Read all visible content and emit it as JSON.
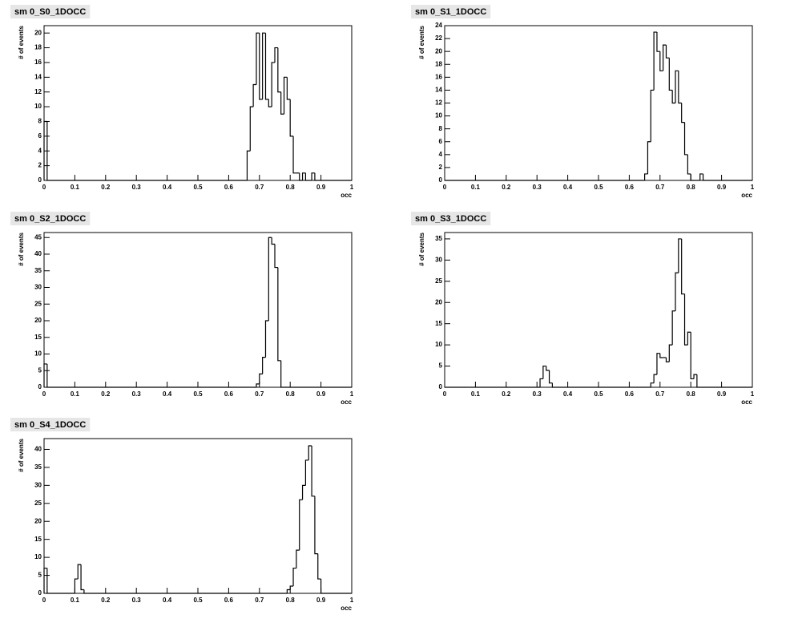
{
  "chart_data": [
    {
      "type": "histogram",
      "title": "sm 0_S0_1DOCC",
      "x_label": "occ",
      "y_label": "# of events",
      "color": "#000000",
      "bins": [
        0,
        0.01,
        0.66,
        0.67,
        0.68,
        0.69,
        0.7,
        0.71,
        0.72,
        0.73,
        0.74,
        0.75,
        0.76,
        0.77,
        0.78,
        0.79,
        0.8,
        0.81,
        0.82,
        0.83,
        0.84,
        0.85,
        0.86,
        0.87,
        0.88,
        1
      ],
      "values": [
        8,
        0,
        4,
        10,
        13,
        20,
        11,
        20,
        11,
        10,
        16,
        18,
        12,
        9,
        14,
        11,
        6,
        1,
        1,
        0,
        1,
        0,
        0,
        1,
        0
      ],
      "xlim": [
        0,
        1
      ],
      "ylim": [
        0,
        21
      ],
      "xticks": [
        0,
        0.1,
        0.2,
        0.3,
        0.4,
        0.5,
        0.6,
        0.7,
        0.8,
        0.9,
        1
      ],
      "yticks": [
        0,
        2,
        4,
        6,
        8,
        10,
        12,
        14,
        16,
        18,
        20
      ]
    },
    {
      "type": "histogram",
      "title": "sm 0_S1_1DOCC",
      "x_label": "occ",
      "y_label": "# of events",
      "color": "#000000",
      "bins": [
        0,
        0.65,
        0.66,
        0.67,
        0.68,
        0.69,
        0.7,
        0.71,
        0.72,
        0.73,
        0.74,
        0.75,
        0.76,
        0.77,
        0.78,
        0.79,
        0.8,
        0.81,
        0.82,
        0.83,
        0.84,
        1
      ],
      "values": [
        0,
        1,
        6,
        14,
        23,
        20,
        17,
        21,
        19,
        14,
        12,
        17,
        12,
        9,
        4,
        1,
        0,
        0,
        0,
        1,
        0
      ],
      "xlim": [
        0,
        1
      ],
      "ylim": [
        0,
        24
      ],
      "xticks": [
        0,
        0.1,
        0.2,
        0.3,
        0.4,
        0.5,
        0.6,
        0.7,
        0.8,
        0.9,
        1
      ],
      "yticks": [
        0,
        2,
        4,
        6,
        8,
        10,
        12,
        14,
        16,
        18,
        20,
        22,
        24
      ]
    },
    {
      "type": "histogram",
      "title": "sm 0_S2_1DOCC",
      "x_label": "occ",
      "y_label": "# of events",
      "color": "#000000",
      "bins": [
        0,
        0.01,
        0.69,
        0.7,
        0.71,
        0.72,
        0.73,
        0.74,
        0.75,
        0.76,
        0.77,
        1
      ],
      "values": [
        7,
        0,
        1,
        4,
        9,
        20,
        45,
        43,
        36,
        8,
        0
      ],
      "xlim": [
        0,
        1
      ],
      "ylim": [
        0,
        46.5
      ],
      "xticks": [
        0,
        0.1,
        0.2,
        0.3,
        0.4,
        0.5,
        0.6,
        0.7,
        0.8,
        0.9,
        1
      ],
      "yticks": [
        0,
        5,
        10,
        15,
        20,
        25,
        30,
        35,
        40,
        45
      ]
    },
    {
      "type": "histogram",
      "title": "sm 0_S3_1DOCC",
      "x_label": "occ",
      "y_label": "# of events",
      "color": "#000000",
      "bins": [
        0,
        0.31,
        0.32,
        0.33,
        0.34,
        0.35,
        0.67,
        0.68,
        0.69,
        0.7,
        0.71,
        0.72,
        0.73,
        0.74,
        0.75,
        0.76,
        0.77,
        0.78,
        0.79,
        0.8,
        0.81,
        0.82,
        1
      ],
      "values": [
        0,
        2,
        5,
        4,
        1,
        0,
        1,
        3,
        8,
        7,
        7,
        6,
        10,
        18,
        27,
        35,
        22,
        10,
        13,
        2,
        3,
        0
      ],
      "xlim": [
        0,
        1
      ],
      "ylim": [
        0,
        36.5
      ],
      "xticks": [
        0,
        0.1,
        0.2,
        0.3,
        0.4,
        0.5,
        0.6,
        0.7,
        0.8,
        0.9,
        1
      ],
      "yticks": [
        0,
        5,
        10,
        15,
        20,
        25,
        30,
        35
      ]
    },
    {
      "type": "histogram",
      "title": "sm 0_S4_1DOCC",
      "x_label": "occ",
      "y_label": "# of events",
      "color": "#000000",
      "bins": [
        0,
        0.01,
        0.1,
        0.11,
        0.12,
        0.13,
        0.79,
        0.8,
        0.81,
        0.82,
        0.83,
        0.84,
        0.85,
        0.86,
        0.87,
        0.88,
        0.89,
        0.9,
        1
      ],
      "values": [
        7,
        0,
        4,
        8,
        1,
        0,
        1,
        2,
        7,
        12,
        26,
        30,
        37,
        41,
        27,
        11,
        4,
        0
      ],
      "xlim": [
        0,
        1
      ],
      "ylim": [
        0,
        43
      ],
      "xticks": [
        0,
        0.1,
        0.2,
        0.3,
        0.4,
        0.5,
        0.6,
        0.7,
        0.8,
        0.9,
        1
      ],
      "yticks": [
        0,
        5,
        10,
        15,
        20,
        25,
        30,
        35,
        40
      ]
    }
  ]
}
